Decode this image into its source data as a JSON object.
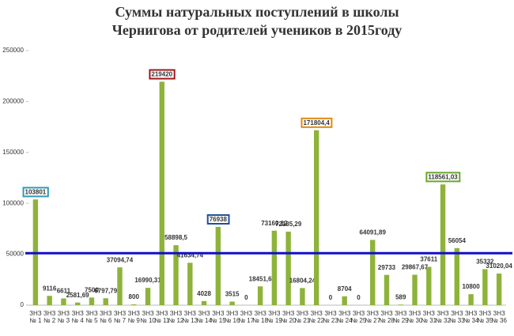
{
  "chart_data": {
    "type": "bar",
    "title": "Суммы натуральных поступлений в школы Чернигова от родителей учеников в 2015году",
    "categories": [
      "ЗНЗ № 1",
      "ЗНЗ № 2",
      "ЗНЗ № 3",
      "ЗНЗ № 4",
      "ЗНЗ № 5",
      "ЗНЗ № 6",
      "ЗНЗ № 7",
      "ЗНЗ № 9",
      "ЗНЗ № 10",
      "ЗНЗ № 11",
      "ЗНЗ № 12",
      "ЗНЗ № 13",
      "ЗНЗ № 14",
      "ЗНЗ № 15",
      "ЗНЗ № 16",
      "ЗНЗ № 17",
      "ЗНЗ № 18",
      "ЗНЗ № 19",
      "ЗНЗ № 20",
      "ЗНЗ № 21",
      "ЗНЗ № 22",
      "ЗНЗ № 23",
      "ЗНЗ № 24",
      "ЗНЗ № 25",
      "ЗНЗ № 27",
      "ЗНЗ № 28",
      "ЗНЗ № 29",
      "ЗНЗ № 30",
      "ЗНЗ № 31",
      "ЗНЗ № 32",
      "ЗНЗ № 33",
      "ЗНЗ № 34",
      "ЗНЗ № 35",
      "ЗНЗ № 36"
    ],
    "values": [
      103801,
      9116,
      6611,
      2581.69,
      7500,
      6797.79,
      37094.74,
      800,
      16990.31,
      219420,
      58898.5,
      41634.74,
      4028,
      76938,
      3515,
      0,
      18451.6,
      73160.12,
      72185.29,
      16804.24,
      171804.4,
      0,
      8704,
      0,
      64091.89,
      29733,
      589,
      29867.67,
      37611,
      118561.03,
      56054,
      10800,
      35332,
      31020.04
    ],
    "value_labels": [
      "103801",
      "9116",
      "6611",
      "2581,69",
      "7500",
      "6797,79",
      "37094,74",
      "800",
      "16990,31",
      "219420",
      "58898,5",
      "41634,74",
      "4028",
      "76938",
      "3515",
      "0",
      "18451,6",
      "73160,12",
      "72185,29",
      "16804,24",
      "171804,4",
      "0",
      "8704",
      "0",
      "64091,89",
      "29733",
      "589",
      "29867,67",
      "37611",
      "118561,03",
      "56054",
      "10800",
      "35332",
      "31020,04"
    ],
    "value_label_borders": [
      "#2e9ab5",
      null,
      null,
      null,
      null,
      null,
      null,
      null,
      null,
      "#a3141c",
      null,
      null,
      null,
      "#1f4e9c",
      null,
      null,
      null,
      null,
      null,
      null,
      "#e08a12",
      null,
      null,
      null,
      null,
      null,
      null,
      null,
      null,
      "#6aa62b",
      null,
      null,
      null,
      null
    ],
    "color": "#8db33a",
    "ylim": [
      0,
      250000
    ],
    "yticks": [
      0,
      50000,
      100000,
      150000,
      200000,
      250000
    ],
    "reference_line": {
      "value": 51000,
      "color": "#1010c8"
    }
  }
}
